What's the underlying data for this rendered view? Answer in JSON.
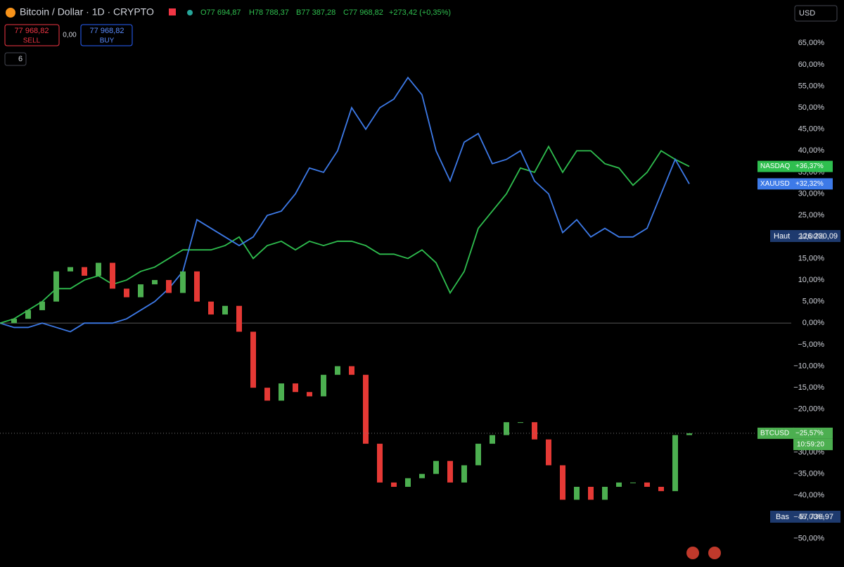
{
  "ui": {
    "symbol": "Bitcoin / Dollar · 1D · CRYPTO",
    "open": "O77 694,87",
    "high": "H78 788,37",
    "low": "B77 387,28",
    "close": "C77 968,82",
    "change": "+273,42 (+0,35%)",
    "sell_price": "77 968,82",
    "sell": "SELL",
    "spread": "0,00",
    "buy_price": "77 968,82",
    "buy": "BUY",
    "indicators": "6",
    "currency": "USD",
    "high_label": "Haut",
    "high_value": "126 230,09",
    "low_label": "Bas",
    "low_value": "57 736,97",
    "countdown": "10:59:20"
  },
  "chart_data": {
    "type": "line",
    "ylim": [
      -54,
      75
    ],
    "yticks": [
      {
        "value": 65,
        "label": "65,00%"
      },
      {
        "value": 60,
        "label": "60,00%"
      },
      {
        "value": 55,
        "label": "55,00%"
      },
      {
        "value": 50,
        "label": "50,00%"
      },
      {
        "value": 45,
        "label": "45,00%"
      },
      {
        "value": 40,
        "label": "40,00%"
      },
      {
        "value": 35,
        "label": "35,00%"
      },
      {
        "value": 30,
        "label": "30,00%"
      },
      {
        "value": 25,
        "label": "25,00%"
      },
      {
        "value": 20,
        "label": "20,00%"
      },
      {
        "value": 15,
        "label": "15,00%"
      },
      {
        "value": 10,
        "label": "10,00%"
      },
      {
        "value": 5,
        "label": "5,00%"
      },
      {
        "value": 0,
        "label": "0,00%"
      },
      {
        "value": -5,
        "label": "−5,00%"
      },
      {
        "value": -10,
        "label": "−10,00%"
      },
      {
        "value": -15,
        "label": "−15,00%"
      },
      {
        "value": -20,
        "label": "−20,00%"
      },
      {
        "value": -25,
        "label": "−25,00%"
      },
      {
        "value": -30,
        "label": "−30,00%"
      },
      {
        "value": -35,
        "label": "−35,00%"
      },
      {
        "value": -40,
        "label": "−40,00%"
      },
      {
        "value": -45,
        "label": "−45,00%"
      },
      {
        "value": -50,
        "label": "−50,00%"
      }
    ],
    "series": [
      {
        "name": "NASDAQ",
        "color": "#2fbf4f",
        "style": "line",
        "last_label": "+36,37%",
        "values": [
          0,
          1,
          3,
          5,
          8,
          8,
          10,
          11,
          9,
          10,
          12,
          13,
          15,
          17,
          17,
          17,
          18,
          20,
          15,
          18,
          19,
          17,
          19,
          18,
          19,
          19,
          18,
          16,
          16,
          15,
          17,
          14,
          7,
          12,
          22,
          26,
          30,
          36,
          35,
          41,
          35,
          40,
          40,
          37,
          36,
          32,
          35,
          40,
          38,
          36.37
        ]
      },
      {
        "name": "XAUUSD",
        "color": "#3d7ae8",
        "style": "line",
        "last_label": "+32,32%",
        "values": [
          0,
          -1,
          -1,
          0,
          -1,
          -2,
          0,
          0,
          0,
          1,
          3,
          5,
          8,
          12,
          24,
          22,
          20,
          18,
          20,
          25,
          26,
          30,
          36,
          35,
          40,
          50,
          45,
          50,
          52,
          57,
          53,
          40,
          33,
          42,
          44,
          37,
          38,
          40,
          33,
          30,
          21,
          24,
          20,
          22,
          20,
          20,
          22,
          30,
          38,
          32.32
        ]
      },
      {
        "name": "BTCUSD",
        "color": "#4caf50",
        "down_color": "#e53935",
        "style": "candle",
        "last_label": "−25,57%",
        "values": [
          0,
          1,
          3,
          5,
          12,
          13,
          11,
          14,
          8,
          6,
          9,
          10,
          7,
          12,
          5,
          2,
          4,
          -2,
          -15,
          -18,
          -14,
          -16,
          -17,
          -12,
          -10,
          -12,
          -28,
          -37,
          -38,
          -36,
          -35,
          -32,
          -37,
          -33,
          -28,
          -26,
          -23,
          -23,
          -27,
          -33,
          -41,
          -38,
          -41,
          -38,
          -37,
          -37,
          -38,
          -39,
          -26,
          -25.57
        ]
      }
    ]
  }
}
